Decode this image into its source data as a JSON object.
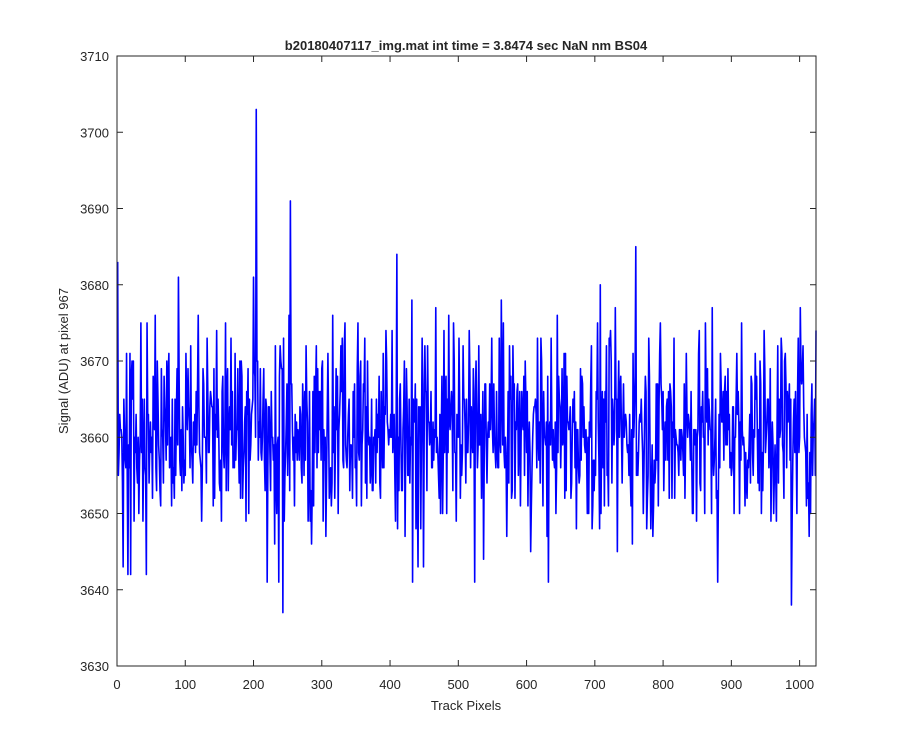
{
  "chart_data": {
    "type": "line",
    "title": "b20180407117_img.mat int time = 3.8474 sec  NaN nm BS04",
    "xlabel": "Track Pixels",
    "ylabel": "Signal (ADU) at pixel 967",
    "xlim": [
      0,
      1024
    ],
    "ylim": [
      3630,
      3710
    ],
    "xticks": [
      0,
      100,
      200,
      300,
      400,
      500,
      600,
      700,
      800,
      900,
      1000
    ],
    "yticks": [
      3630,
      3640,
      3650,
      3660,
      3670,
      3680,
      3690,
      3700,
      3710
    ],
    "grid": false,
    "legend": "none",
    "series": [
      {
        "color": "#0000ff",
        "x_start": 1,
        "x_step": 1,
        "count": 1024,
        "mean": 3661,
        "spread": 6.5,
        "min": 3637,
        "max": 3703,
        "spikes": [
          {
            "x": 1,
            "y": 3683
          },
          {
            "x": 9,
            "y": 3643
          },
          {
            "x": 16,
            "y": 3642
          },
          {
            "x": 20,
            "y": 3642
          },
          {
            "x": 90,
            "y": 3681
          },
          {
            "x": 200,
            "y": 3681
          },
          {
            "x": 204,
            "y": 3703
          },
          {
            "x": 220,
            "y": 3641
          },
          {
            "x": 237,
            "y": 3641
          },
          {
            "x": 243,
            "y": 3637
          },
          {
            "x": 254,
            "y": 3691
          },
          {
            "x": 410,
            "y": 3684
          },
          {
            "x": 433,
            "y": 3641
          },
          {
            "x": 441,
            "y": 3643
          },
          {
            "x": 524,
            "y": 3641
          },
          {
            "x": 632,
            "y": 3641
          },
          {
            "x": 760,
            "y": 3685
          },
          {
            "x": 880,
            "y": 3641
          },
          {
            "x": 988,
            "y": 3638
          },
          {
            "x": 1001,
            "y": 3677
          }
        ]
      }
    ]
  }
}
